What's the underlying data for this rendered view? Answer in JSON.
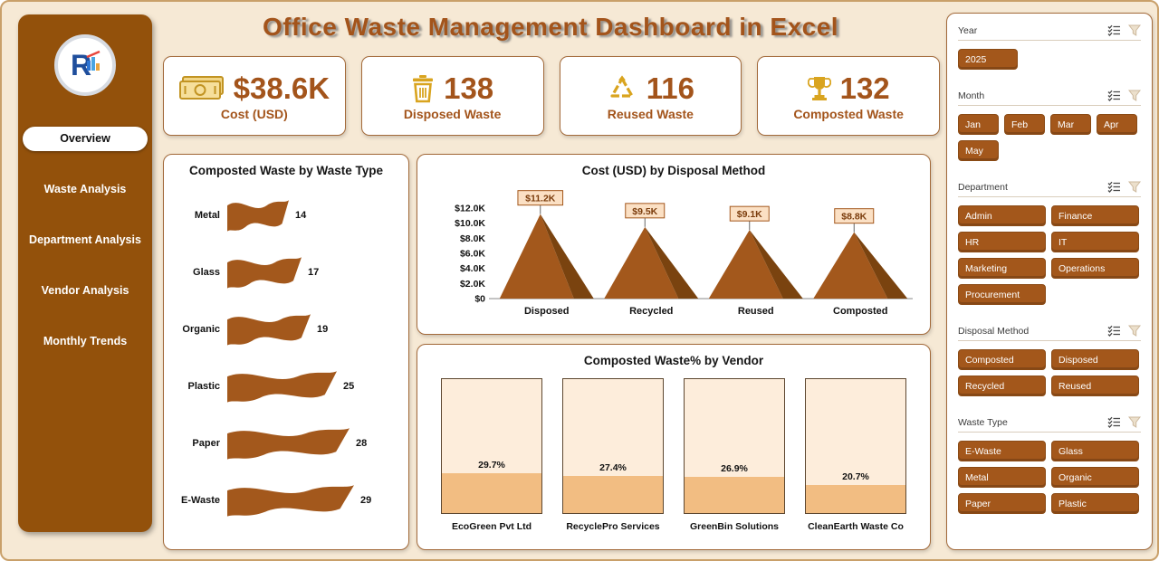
{
  "header": {
    "title": "Office Waste Management Dashboard in Excel"
  },
  "sidebar": {
    "items": [
      {
        "label": "Overview",
        "active": true
      },
      {
        "label": "Waste Analysis",
        "active": false
      },
      {
        "label": "Department Analysis",
        "active": false
      },
      {
        "label": "Vendor Analysis",
        "active": false
      },
      {
        "label": "Monthly Trends",
        "active": false
      }
    ]
  },
  "kpis": [
    {
      "value": "$38.6K",
      "label": "Cost (USD)",
      "icon": "money-icon"
    },
    {
      "value": "138",
      "label": "Disposed Waste",
      "icon": "trash-icon"
    },
    {
      "value": "116",
      "label": "Reused Waste",
      "icon": "recycle-icon"
    },
    {
      "value": "132",
      "label": "Composted Waste",
      "icon": "trophy-icon"
    }
  ],
  "chart_data": [
    {
      "type": "bar",
      "title": "Composted Waste by Waste Type",
      "categories": [
        "Metal",
        "Glass",
        "Organic",
        "Plastic",
        "Paper",
        "E-Waste"
      ],
      "values": [
        14,
        17,
        19,
        25,
        28,
        29
      ],
      "xlabel": "",
      "ylabel": "",
      "legend": "none",
      "grid": false,
      "bar_color": "#a3581c"
    },
    {
      "type": "area",
      "title": "Cost (USD) by Disposal Method",
      "categories": [
        "Disposed",
        "Recycled",
        "Reused",
        "Composted"
      ],
      "values": [
        11.2,
        9.5,
        9.1,
        8.8
      ],
      "labels": [
        "$11.2K",
        "$9.5K",
        "$9.1K",
        "$8.8K"
      ],
      "ylim": [
        0,
        12
      ],
      "yticks": [
        12,
        10,
        8,
        6,
        4,
        2,
        0
      ],
      "ytick_labels": [
        "$12.0K",
        "$10.0K",
        "$8.0K",
        "$6.0K",
        "$4.0K",
        "$2.0K",
        "$0"
      ],
      "grid": false,
      "legend": "none",
      "fill_color": "#a3581c",
      "shade_color": "#7a430f"
    },
    {
      "type": "bar",
      "title": "Composted Waste% by Vendor",
      "categories": [
        "EcoGreen Pvt Ltd",
        "RecyclePro Services",
        "GreenBin Solutions",
        "CleanEarth Waste Co"
      ],
      "values": [
        29.7,
        27.4,
        26.9,
        20.7
      ],
      "labels": [
        "29.7%",
        "27.4%",
        "26.9%",
        "20.7%"
      ],
      "ylim": [
        0,
        100
      ],
      "grid": false,
      "legend": "none",
      "fill_color": "#f2bd82",
      "box_color": "#fdeddb"
    }
  ],
  "filters": {
    "sections": [
      {
        "label": "Year",
        "options": [
          "2025"
        ]
      },
      {
        "label": "Month",
        "options": [
          "Jan",
          "Feb",
          "Mar",
          "Apr",
          "May"
        ]
      },
      {
        "label": "Department",
        "options": [
          "Admin",
          "Finance",
          "HR",
          "IT",
          "Marketing",
          "Operations",
          "Procurement"
        ]
      },
      {
        "label": "Disposal Method",
        "options": [
          "Composted",
          "Disposed",
          "Recycled",
          "Reused"
        ]
      },
      {
        "label": "Waste Type",
        "options": [
          "E-Waste",
          "Glass",
          "Metal",
          "Organic",
          "Paper",
          "Plastic"
        ]
      }
    ]
  },
  "colors": {
    "accent_brown": "#a3541b",
    "sidebar_brown": "#93510b",
    "gold": "#d9a41f",
    "page_bg": "#f6e9d5",
    "callout_bg": "#fbe0c4"
  }
}
